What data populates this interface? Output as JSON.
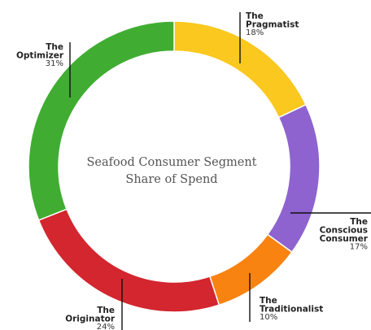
{
  "chart_data": {
    "type": "pie",
    "title": "Seafood Consumer Segment Share of Spend",
    "title_lines": [
      "Seafood Consumer Segment",
      "Share of Spend"
    ],
    "donut": true,
    "slices": [
      {
        "label_lines": [
          "The",
          "Pragmatist"
        ],
        "label": "The Pragmatist",
        "value": 18,
        "value_text": "18%",
        "color": "#fac81e"
      },
      {
        "label_lines": [
          "The",
          "Conscious",
          "Consumer"
        ],
        "label": "The Conscious Consumer",
        "value": 17,
        "value_text": "17%",
        "color": "#8e63cf"
      },
      {
        "label_lines": [
          "The",
          "Traditionalist"
        ],
        "label": "The Traditionalist",
        "value": 10,
        "value_text": "10%",
        "color": "#f88310"
      },
      {
        "label_lines": [
          "The",
          "Originator"
        ],
        "label": "The Originator",
        "value": 24,
        "value_text": "24%",
        "color": "#d3262f"
      },
      {
        "label_lines": [
          "The",
          "Optimizer"
        ],
        "label": "The Optimizer",
        "value": 31,
        "value_text": "31%",
        "color": "#40ad32"
      }
    ]
  }
}
